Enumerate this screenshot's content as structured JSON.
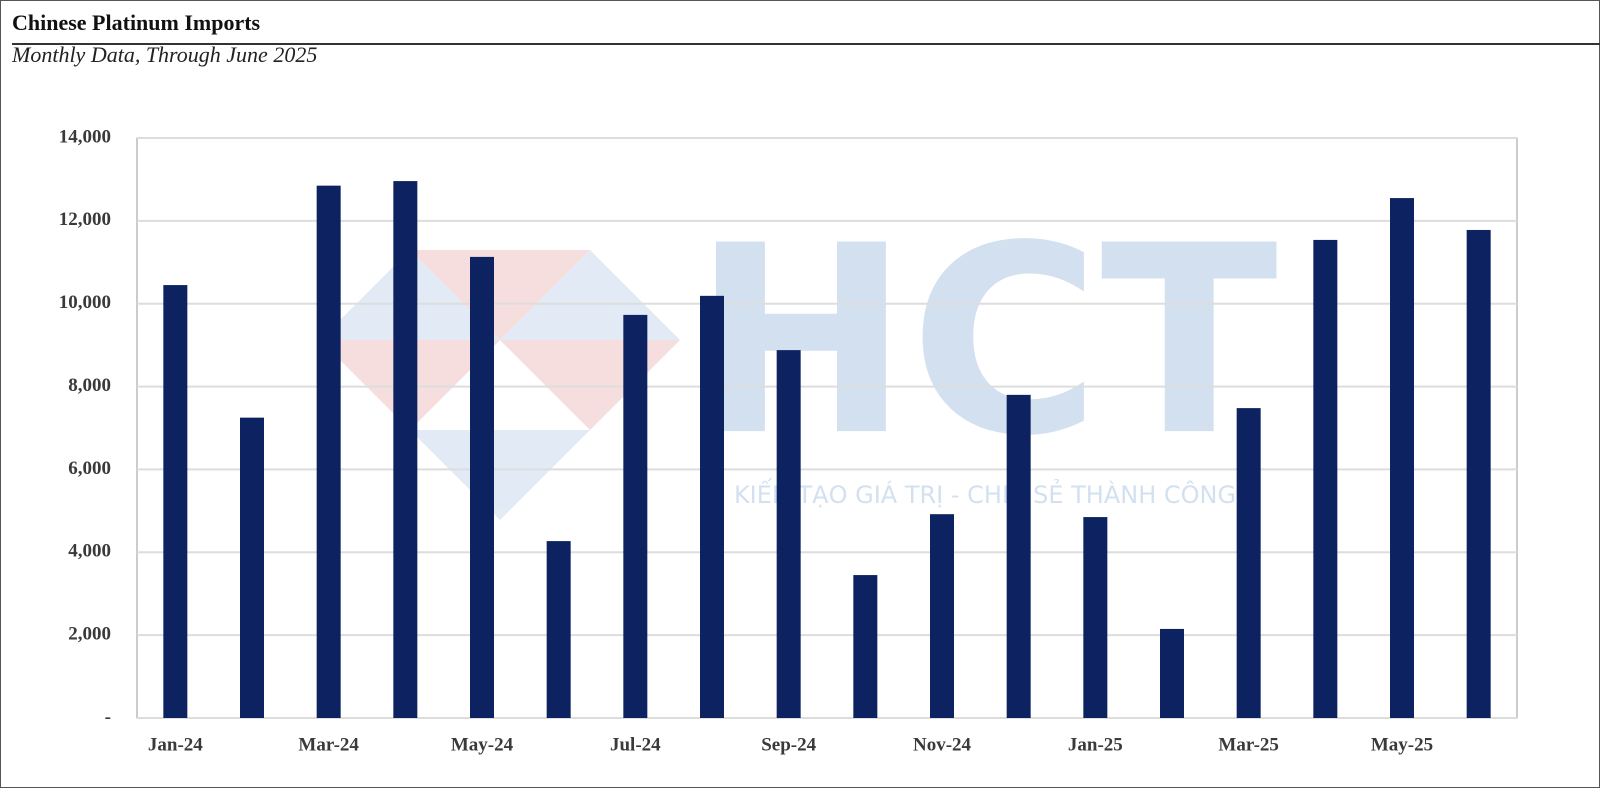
{
  "chart_data": {
    "type": "bar",
    "title": "Chinese Platinum Imports",
    "subtitle": "Monthly Data, Through June 2025",
    "watermark": "HCT",
    "watermark_tagline": "KIẾN TẠO GIÁ TRỊ - CHIA SẺ THÀNH CÔNG",
    "categories": [
      "Jan-24",
      null,
      "Mar-24",
      null,
      "May-24",
      null,
      "Jul-24",
      null,
      "Sep-24",
      null,
      "Nov-24",
      null,
      "Jan-25",
      null,
      "Mar-25",
      null,
      "May-25",
      null
    ],
    "values": [
      10450,
      7250,
      12850,
      12960,
      11130,
      4270,
      9730,
      10190,
      8880,
      3450,
      4920,
      7800,
      4850,
      2150,
      7480,
      11540,
      12550,
      11780
    ],
    "color": "#0d2260",
    "ylim": [
      0,
      14000
    ],
    "yticks": [
      {
        "value": 0,
        "label": "-"
      },
      {
        "value": 2000,
        "label": "2,000"
      },
      {
        "value": 4000,
        "label": "4,000"
      },
      {
        "value": 6000,
        "label": "6,000"
      },
      {
        "value": 8000,
        "label": "8,000"
      },
      {
        "value": 10000,
        "label": "10,000"
      },
      {
        "value": 12000,
        "label": "12,000"
      },
      {
        "value": 14000,
        "label": "14,000"
      }
    ],
    "grid": true
  }
}
